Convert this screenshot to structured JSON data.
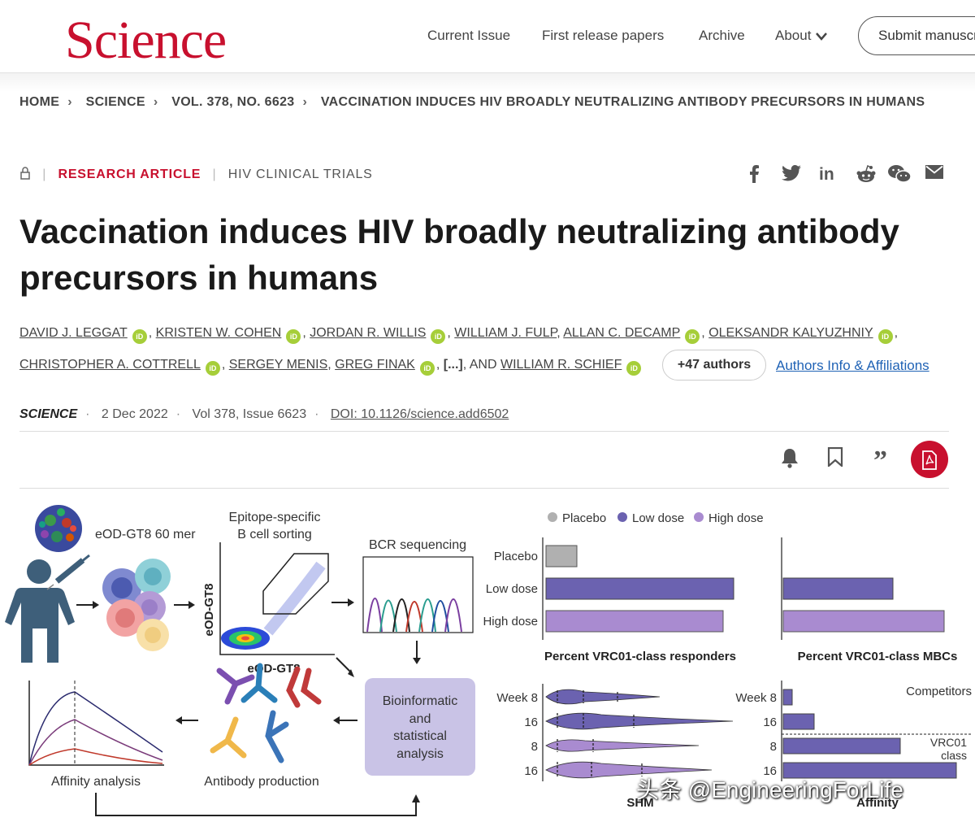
{
  "header": {
    "logo": "Science",
    "nav": [
      "Current Issue",
      "First release papers",
      "Archive",
      "About"
    ],
    "submit_label": "Submit manuscript"
  },
  "breadcrumb": [
    "HOME",
    "SCIENCE",
    "VOL. 378, NO. 6623",
    "VACCINATION INDUCES HIV BROADLY NEUTRALIZING ANTIBODY PRECURSORS IN HUMANS"
  ],
  "article": {
    "type": "RESEARCH ARTICLE",
    "category": "HIV CLINICAL TRIALS",
    "title": "Vaccination induces HIV broadly neutralizing antibody precursors in humans",
    "authors_line1": [
      "DAVID J. LEGGAT",
      "KRISTEN W. COHEN",
      "JORDAN R. WILLIS",
      "WILLIAM J. FULP",
      "ALLAN C. DECAMP",
      "OLEKSANDR KALYUZHNIY"
    ],
    "authors_line2": [
      "CHRISTOPHER A. COTTRELL",
      "SERGEY MENIS",
      "GREG FINAK",
      "[...]",
      "AND",
      "WILLIAM R. SCHIEF"
    ],
    "more_authors": "+47 authors",
    "affiliations_link": "Authors Info & Affiliations",
    "journal": "SCIENCE",
    "date": "2 Dec 2022",
    "volume": "Vol 378, Issue 6623",
    "doi": "DOI: 10.1126/science.add6502"
  },
  "figure": {
    "immunogen": "eOD-GT8 60 mer",
    "sorting_label": [
      "Epitope-specific",
      "B cell sorting"
    ],
    "axis_y": "eOD-GT8",
    "axis_x": "eOD-GT8",
    "bcr": "BCR sequencing",
    "bioinfo": [
      "Bioinformatic",
      "and",
      "statistical",
      "analysis"
    ],
    "antibody": "Antibody production",
    "affinity_analysis": "Affinity analysis",
    "legend": [
      "Placebo",
      "Low dose",
      "High dose"
    ],
    "responders_label": "Percent VRC01-class responders",
    "mbcs_label": "Percent VRC01-class MBCs",
    "shm_label": "SHM",
    "affinity_label": "Affinity",
    "week_labels": [
      "Week 8",
      "16",
      "8",
      "16"
    ],
    "competitors": "Competitors",
    "vrc01_class": [
      "VRC01",
      "class"
    ],
    "colors": {
      "placebo": "#b0b0b0",
      "low": "#6b62b0",
      "high": "#a98bd0",
      "bioinfo_box": "#c9c3e6"
    }
  },
  "watermark": "头条 @EngineeringForLife"
}
